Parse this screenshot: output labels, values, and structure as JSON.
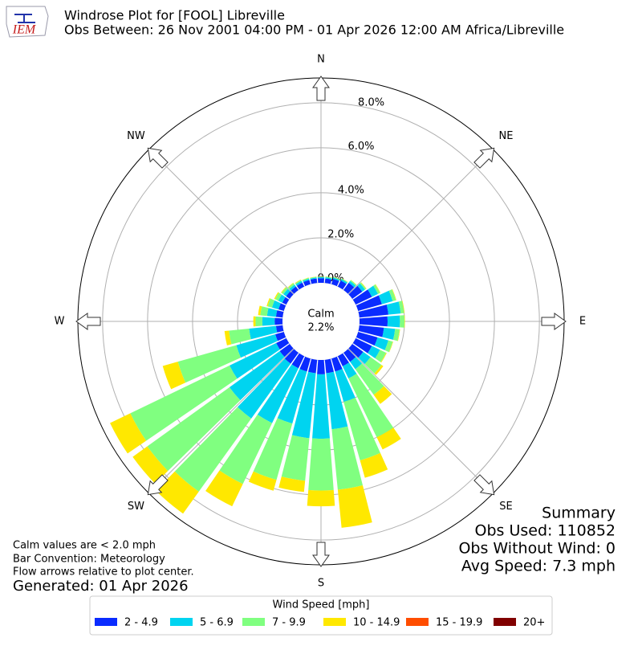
{
  "logo": "IEM",
  "chart_data": {
    "type": "windrose",
    "title": "Windrose Plot for [FOOL] Libreville",
    "subtitle": "Obs Between: 26 Nov 2001 04:00 PM - 01 Apr 2026 12:00 AM Africa/Libreville",
    "directions": [
      0,
      10,
      20,
      30,
      40,
      50,
      60,
      70,
      80,
      90,
      100,
      110,
      120,
      130,
      140,
      150,
      160,
      170,
      180,
      190,
      200,
      210,
      220,
      230,
      240,
      250,
      260,
      270,
      280,
      290,
      300,
      310,
      320,
      330,
      340,
      350
    ],
    "xticks": [
      {
        "value": 0,
        "label": "N"
      },
      {
        "value": 45,
        "label": "NE"
      },
      {
        "value": 90,
        "label": "E"
      },
      {
        "value": 135,
        "label": "SE"
      },
      {
        "value": 180,
        "label": "S"
      },
      {
        "value": 225,
        "label": "SW"
      },
      {
        "value": 270,
        "label": "W"
      },
      {
        "value": 315,
        "label": "NW"
      }
    ],
    "ylim": [
      0,
      9.1
    ],
    "yticks": [
      {
        "value": 0,
        "label": "0.0%"
      },
      {
        "value": 2,
        "label": "2.0%"
      },
      {
        "value": 4,
        "label": "4.0%"
      },
      {
        "value": 6,
        "label": "6.0%"
      },
      {
        "value": 8,
        "label": "8.0%"
      }
    ],
    "grid": true,
    "calm": {
      "name": "Calm",
      "value": 2.2,
      "value_label": "2.2%"
    },
    "legend_title": "Wind Speed [mph]",
    "series": [
      {
        "name": "2 - 4.9",
        "color": "#0a2bff",
        "values": [
          0.2,
          0.2,
          0.25,
          0.3,
          0.4,
          0.55,
          0.8,
          1.1,
          1.3,
          1.25,
          1.1,
          0.9,
          0.8,
          0.6,
          0.5,
          0.5,
          0.6,
          0.6,
          0.64,
          0.6,
          0.6,
          0.6,
          0.6,
          0.55,
          0.5,
          0.4,
          0.3,
          0.35,
          0.3,
          0.25,
          0.2,
          0.2,
          0.2,
          0.2,
          0.2,
          0.2
        ]
      },
      {
        "name": "5 - 6.9",
        "color": "#00d4f0",
        "values": [
          0.05,
          0.06,
          0.06,
          0.07,
          0.1,
          0.15,
          0.3,
          0.5,
          0.55,
          0.55,
          0.5,
          0.5,
          0.4,
          0.4,
          0.4,
          0.6,
          1.4,
          2.5,
          2.86,
          2.9,
          2.4,
          2.7,
          3.0,
          2.75,
          2.3,
          1.8,
          1.2,
          0.55,
          0.4,
          0.3,
          0.2,
          0.15,
          0.1,
          0.08,
          0.06,
          0.05
        ]
      },
      {
        "name": "7 - 9.9",
        "color": "#80ff80",
        "values": [
          0.03,
          0.03,
          0.03,
          0.03,
          0.05,
          0.06,
          0.1,
          0.15,
          0.15,
          0.2,
          0.2,
          0.2,
          0.3,
          0.6,
          1.4,
          2.9,
          2.7,
          2.7,
          2.3,
          1.9,
          2.6,
          3.0,
          4.0,
          4.5,
          4.9,
          2.7,
          0.9,
          0.3,
          0.3,
          0.2,
          0.15,
          0.1,
          0.08,
          0.05,
          0.04,
          0.03
        ]
      },
      {
        "name": "10 - 14.9",
        "color": "#ffe800",
        "values": [
          0,
          0.01,
          0.01,
          0.01,
          0.01,
          0.02,
          0.02,
          0.02,
          0.02,
          0.02,
          0.02,
          0.02,
          0.03,
          0.1,
          0.5,
          0.6,
          0.8,
          1.7,
          0.7,
          0.5,
          0.5,
          1.1,
          1.2,
          0.8,
          1.0,
          0.7,
          0.2,
          0.1,
          0.1,
          0.05,
          0.05,
          0.03,
          0.02,
          0.02,
          0.01,
          0.01
        ]
      },
      {
        "name": "15 - 19.9",
        "color": "#ff4d00",
        "values": [
          0,
          0,
          0,
          0,
          0,
          0,
          0,
          0,
          0,
          0,
          0,
          0,
          0,
          0,
          0,
          0,
          0,
          0,
          0,
          0,
          0,
          0,
          0,
          0,
          0,
          0,
          0,
          0,
          0,
          0,
          0,
          0,
          0,
          0,
          0,
          0
        ]
      },
      {
        "name": "20+",
        "color": "#800000",
        "values": [
          0,
          0,
          0,
          0,
          0,
          0,
          0,
          0,
          0,
          0,
          0,
          0,
          0,
          0,
          0,
          0,
          0,
          0,
          0,
          0,
          0,
          0,
          0,
          0,
          0,
          0,
          0,
          0,
          0,
          0,
          0,
          0,
          0,
          0,
          0,
          0
        ]
      }
    ]
  },
  "notes": [
    "Calm values are < 2.0 mph",
    "Bar Convention: Meteorology",
    "Flow arrows relative to plot center."
  ],
  "generated": "Generated: 01 Apr 2026",
  "summary": {
    "title": "Summary",
    "lines": [
      "Obs Used: 110852",
      "Obs Without Wind: 0",
      "Avg Speed: 7.3 mph"
    ]
  }
}
